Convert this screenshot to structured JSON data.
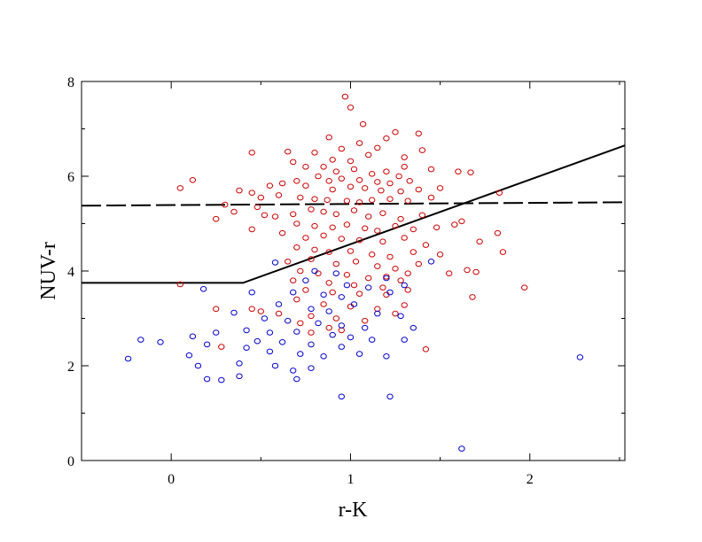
{
  "chart_data": {
    "type": "scatter",
    "title": "",
    "xlabel": "r-K",
    "ylabel": "NUV-r",
    "xlim": [
      -0.5,
      2.53
    ],
    "ylim": [
      0,
      8
    ],
    "x_ticks": [
      "0",
      "1",
      "2"
    ],
    "y_ticks": [
      "0",
      "2",
      "4",
      "6",
      "8"
    ],
    "grid": false,
    "legend": "none",
    "colors": {
      "red_series": "#cc0000",
      "blue_series": "#0000cc",
      "lines": "#000000"
    },
    "series": [
      {
        "color": "red",
        "marker": "open-circle",
        "points": [
          [
            0.97,
            7.68
          ],
          [
            1.0,
            7.45
          ],
          [
            1.07,
            7.1
          ],
          [
            0.88,
            6.82
          ],
          [
            1.05,
            6.7
          ],
          [
            0.95,
            6.58
          ],
          [
            0.8,
            6.5
          ],
          [
            1.15,
            6.6
          ],
          [
            0.65,
            6.52
          ],
          [
            1.38,
            6.9
          ],
          [
            1.25,
            6.93
          ],
          [
            1.2,
            6.8
          ],
          [
            1.4,
            6.55
          ],
          [
            0.45,
            6.5
          ],
          [
            1.3,
            6.4
          ],
          [
            1.1,
            6.45
          ],
          [
            0.9,
            6.35
          ],
          [
            1.0,
            6.32
          ],
          [
            0.68,
            6.3
          ],
          [
            0.75,
            6.2
          ],
          [
            1.3,
            6.2
          ],
          [
            1.45,
            6.15
          ],
          [
            1.6,
            6.1
          ],
          [
            1.67,
            6.08
          ],
          [
            0.85,
            6.2
          ],
          [
            0.92,
            6.1
          ],
          [
            1.02,
            6.15
          ],
          [
            1.12,
            6.05
          ],
          [
            1.2,
            6.1
          ],
          [
            1.27,
            6.0
          ],
          [
            0.82,
            6.0
          ],
          [
            0.88,
            5.9
          ],
          [
            0.95,
            5.95
          ],
          [
            1.05,
            5.92
          ],
          [
            1.15,
            5.88
          ],
          [
            1.22,
            5.85
          ],
          [
            1.33,
            5.9
          ],
          [
            0.7,
            5.9
          ],
          [
            0.62,
            5.85
          ],
          [
            0.75,
            5.8
          ],
          [
            0.55,
            5.8
          ],
          [
            1.0,
            5.78
          ],
          [
            1.08,
            5.75
          ],
          [
            0.9,
            5.72
          ],
          [
            1.17,
            5.7
          ],
          [
            1.28,
            5.68
          ],
          [
            1.38,
            5.72
          ],
          [
            1.5,
            5.75
          ],
          [
            0.12,
            5.92
          ],
          [
            0.05,
            5.75
          ],
          [
            0.38,
            5.7
          ],
          [
            0.45,
            5.65
          ],
          [
            0.5,
            5.55
          ],
          [
            0.6,
            5.6
          ],
          [
            0.72,
            5.55
          ],
          [
            0.8,
            5.52
          ],
          [
            0.87,
            5.5
          ],
          [
            0.98,
            5.48
          ],
          [
            1.05,
            5.45
          ],
          [
            1.12,
            5.5
          ],
          [
            1.22,
            5.52
          ],
          [
            1.32,
            5.48
          ],
          [
            1.45,
            5.55
          ],
          [
            1.83,
            5.65
          ],
          [
            0.3,
            5.4
          ],
          [
            0.25,
            5.1
          ],
          [
            0.35,
            5.25
          ],
          [
            0.48,
            5.35
          ],
          [
            0.52,
            5.18
          ],
          [
            0.58,
            5.15
          ],
          [
            0.68,
            5.2
          ],
          [
            0.78,
            5.3
          ],
          [
            0.85,
            5.25
          ],
          [
            0.92,
            5.2
          ],
          [
            1.02,
            5.28
          ],
          [
            1.1,
            5.15
          ],
          [
            1.18,
            5.22
          ],
          [
            1.28,
            5.1
          ],
          [
            1.4,
            5.18
          ],
          [
            1.62,
            5.05
          ],
          [
            0.7,
            5.0
          ],
          [
            0.8,
            4.95
          ],
          [
            0.9,
            4.92
          ],
          [
            0.98,
            4.98
          ],
          [
            1.08,
            4.9
          ],
          [
            1.15,
            4.85
          ],
          [
            1.25,
            4.95
          ],
          [
            1.35,
            4.88
          ],
          [
            1.48,
            4.92
          ],
          [
            1.58,
            4.98
          ],
          [
            0.45,
            4.88
          ],
          [
            0.62,
            4.8
          ],
          [
            0.75,
            4.7
          ],
          [
            0.85,
            4.75
          ],
          [
            0.95,
            4.68
          ],
          [
            1.05,
            4.65
          ],
          [
            1.18,
            4.62
          ],
          [
            1.3,
            4.7
          ],
          [
            1.42,
            4.55
          ],
          [
            1.72,
            4.62
          ],
          [
            1.82,
            4.8
          ],
          [
            0.7,
            4.5
          ],
          [
            0.8,
            4.45
          ],
          [
            0.88,
            4.4
          ],
          [
            1.0,
            4.42
          ],
          [
            1.12,
            4.35
          ],
          [
            1.22,
            4.3
          ],
          [
            1.35,
            4.4
          ],
          [
            1.5,
            4.35
          ],
          [
            1.85,
            4.4
          ],
          [
            0.65,
            4.2
          ],
          [
            0.78,
            4.25
          ],
          [
            0.92,
            4.15
          ],
          [
            1.03,
            4.2
          ],
          [
            1.15,
            4.1
          ],
          [
            1.25,
            4.05
          ],
          [
            1.38,
            4.15
          ],
          [
            0.72,
            4.0
          ],
          [
            0.82,
            3.95
          ],
          [
            0.98,
            3.92
          ],
          [
            1.1,
            3.85
          ],
          [
            1.2,
            3.88
          ],
          [
            1.32,
            3.95
          ],
          [
            1.55,
            3.95
          ],
          [
            1.65,
            4.02
          ],
          [
            1.7,
            3.98
          ],
          [
            0.68,
            3.8
          ],
          [
            0.88,
            3.75
          ],
          [
            1.02,
            3.7
          ],
          [
            1.18,
            3.65
          ],
          [
            1.28,
            3.8
          ],
          [
            0.05,
            3.72
          ],
          [
            0.75,
            3.6
          ],
          [
            0.9,
            3.55
          ],
          [
            1.05,
            3.52
          ],
          [
            1.2,
            3.5
          ],
          [
            1.32,
            3.6
          ],
          [
            1.68,
            3.45
          ],
          [
            1.97,
            3.65
          ],
          [
            0.7,
            3.4
          ],
          [
            0.85,
            3.3
          ],
          [
            1.0,
            3.25
          ],
          [
            1.15,
            3.2
          ],
          [
            1.3,
            3.28
          ],
          [
            0.25,
            3.2
          ],
          [
            0.5,
            3.15
          ],
          [
            0.6,
            3.1
          ],
          [
            0.78,
            3.05
          ],
          [
            0.92,
            3.0
          ],
          [
            1.08,
            2.95
          ],
          [
            1.25,
            3.1
          ],
          [
            0.45,
            3.2
          ],
          [
            0.72,
            2.9
          ],
          [
            0.88,
            2.8
          ],
          [
            0.95,
            2.75
          ],
          [
            1.42,
            2.35
          ],
          [
            0.28,
            2.4
          ],
          [
            0.78,
            2.7
          ]
        ]
      },
      {
        "color": "blue",
        "marker": "open-circle",
        "points": [
          [
            0.58,
            4.18
          ],
          [
            1.45,
            4.2
          ],
          [
            0.8,
            4.0
          ],
          [
            0.92,
            3.95
          ],
          [
            1.2,
            3.85
          ],
          [
            0.75,
            3.8
          ],
          [
            0.98,
            3.7
          ],
          [
            1.1,
            3.65
          ],
          [
            1.3,
            3.7
          ],
          [
            0.68,
            3.55
          ],
          [
            0.85,
            3.5
          ],
          [
            0.95,
            3.45
          ],
          [
            1.22,
            3.55
          ],
          [
            0.18,
            3.62
          ],
          [
            0.45,
            3.55
          ],
          [
            0.6,
            3.3
          ],
          [
            0.78,
            3.2
          ],
          [
            0.88,
            3.15
          ],
          [
            1.02,
            3.3
          ],
          [
            1.15,
            3.1
          ],
          [
            1.28,
            3.05
          ],
          [
            0.35,
            3.12
          ],
          [
            0.52,
            3.0
          ],
          [
            0.65,
            2.95
          ],
          [
            0.82,
            2.9
          ],
          [
            0.95,
            2.85
          ],
          [
            1.08,
            2.8
          ],
          [
            1.35,
            2.8
          ],
          [
            0.42,
            2.75
          ],
          [
            0.55,
            2.7
          ],
          [
            0.7,
            2.72
          ],
          [
            0.9,
            2.65
          ],
          [
            1.0,
            2.6
          ],
          [
            1.12,
            2.55
          ],
          [
            1.3,
            2.55
          ],
          [
            0.25,
            2.7
          ],
          [
            0.48,
            2.52
          ],
          [
            0.62,
            2.5
          ],
          [
            0.78,
            2.45
          ],
          [
            0.95,
            2.4
          ],
          [
            -0.17,
            2.55
          ],
          [
            -0.06,
            2.5
          ],
          [
            0.12,
            2.62
          ],
          [
            0.2,
            2.45
          ],
          [
            0.42,
            2.38
          ],
          [
            0.55,
            2.3
          ],
          [
            0.72,
            2.25
          ],
          [
            0.85,
            2.2
          ],
          [
            1.05,
            2.25
          ],
          [
            1.2,
            2.2
          ],
          [
            -0.24,
            2.15
          ],
          [
            0.1,
            2.22
          ],
          [
            0.15,
            2.0
          ],
          [
            0.38,
            2.05
          ],
          [
            0.58,
            2.0
          ],
          [
            0.68,
            1.9
          ],
          [
            0.78,
            1.95
          ],
          [
            0.2,
            1.72
          ],
          [
            0.28,
            1.7
          ],
          [
            0.38,
            1.78
          ],
          [
            0.7,
            1.72
          ],
          [
            0.95,
            1.35
          ],
          [
            1.22,
            1.35
          ],
          [
            2.28,
            2.18
          ],
          [
            1.62,
            0.25
          ]
        ]
      }
    ],
    "lines": [
      {
        "style": "solid",
        "points": [
          [
            -0.5,
            3.75
          ],
          [
            0.4,
            3.75
          ],
          [
            2.53,
            6.65
          ]
        ]
      },
      {
        "style": "dashed",
        "points": [
          [
            -0.5,
            5.38
          ],
          [
            2.53,
            5.45
          ]
        ]
      }
    ]
  }
}
